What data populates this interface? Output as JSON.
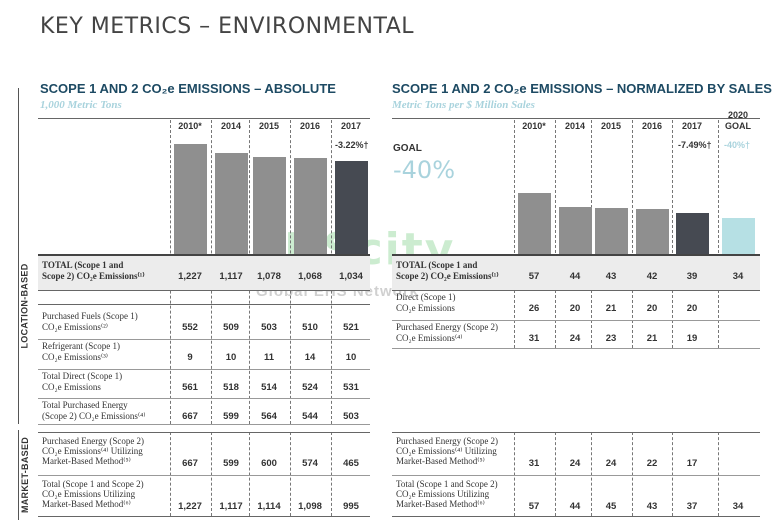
{
  "page_title": "KEY METRICS – ENVIRONMENTAL",
  "sidebar": {
    "location_based": "LOCATION-BASED",
    "market_based": "MARKET-BASED"
  },
  "watermark": {
    "main": "EHScity",
    "sub": "Global EHS Network"
  },
  "chart_data": [
    {
      "type": "bar",
      "title": "SCOPE 1 AND 2 CO₂e EMISSIONS – ABSOLUTE",
      "subtitle": "1,000 Metric Tons",
      "categories": [
        "2010*",
        "2014",
        "2015",
        "2016",
        "2017"
      ],
      "values": [
        1227,
        1117,
        1078,
        1068,
        1034
      ],
      "change_note": "-3.22%†",
      "ylim": [
        0,
        1300
      ],
      "highlight_last": true,
      "table": {
        "location_based_total": {
          "label_1": "TOTAL (Scope 1 and",
          "label_2": "Scope 2) CO₂e Emissions⁽¹⁾",
          "values": [
            "1,227",
            "1,117",
            "1,078",
            "1,068",
            "1,034"
          ]
        },
        "location_based_rows": [
          {
            "label_1": "Purchased Fuels (Scope 1)",
            "label_2": "CO₂e Emissions⁽²⁾",
            "values": [
              "552",
              "509",
              "503",
              "510",
              "521"
            ]
          },
          {
            "label_1": "Refrigerant (Scope 1)",
            "label_2": "CO₂e Emissions⁽³⁾",
            "values": [
              "9",
              "10",
              "11",
              "14",
              "10"
            ]
          },
          {
            "label_1": "Total Direct (Scope 1)",
            "label_2": "CO₂e Emissions",
            "values": [
              "561",
              "518",
              "514",
              "524",
              "531"
            ]
          },
          {
            "label_1": "Total Purchased Energy",
            "label_2": "(Scope 2) CO₂e Emissions⁽⁴⁾",
            "values": [
              "667",
              "599",
              "564",
              "544",
              "503"
            ]
          }
        ],
        "market_based_rows": [
          {
            "label_1": "Purchased Energy (Scope 2)",
            "label_2": "CO₂e Emissions⁽⁴⁾ Utilizing",
            "label_3": "Market-Based Method⁽⁵⁾",
            "values": [
              "667",
              "599",
              "600",
              "574",
              "465"
            ]
          },
          {
            "label_1": "Total (Scope 1 and Scope 2)",
            "label_2": "CO₂e Emissions Utilizing",
            "label_3": "Market-Based Method⁽⁶⁾",
            "values": [
              "1,227",
              "1,117",
              "1,114",
              "1,098",
              "995"
            ]
          }
        ]
      }
    },
    {
      "type": "bar",
      "title": "SCOPE 1 AND 2 CO₂e EMISSIONS – NORMALIZED BY SALES",
      "subtitle": "Metric Tons per $ Million Sales",
      "categories": [
        "2010*",
        "2014",
        "2015",
        "2016",
        "2017",
        "2020 GOAL"
      ],
      "values": [
        57,
        44,
        43,
        42,
        39,
        34
      ],
      "change_note": "-7.49%†",
      "goal_note": "-40%†",
      "goal_label": "GOAL",
      "goal_pct": "-40%",
      "ylim": [
        0,
        110
      ],
      "table": {
        "location_based_total": {
          "label_1": "TOTAL (Scope 1 and",
          "label_2": "Scope 2) CO₂e Emissions⁽¹⁾",
          "values": [
            "57",
            "44",
            "43",
            "42",
            "39",
            "34"
          ]
        },
        "location_based_rows": [
          {
            "label_1": "Direct (Scope 1)",
            "label_2": "CO₂e Emissions",
            "values": [
              "26",
              "20",
              "21",
              "20",
              "20",
              ""
            ]
          },
          {
            "label_1": "Purchased Energy (Scope 2)",
            "label_2": "CO₂e Emissions⁽⁴⁾",
            "values": [
              "31",
              "24",
              "23",
              "21",
              "19",
              ""
            ]
          }
        ],
        "market_based_rows": [
          {
            "label_1": "Purchased Energy (Scope 2)",
            "label_2": "CO₂e Emissions⁽⁴⁾ Utilizing",
            "label_3": "Market-Based Method⁽⁵⁾",
            "values": [
              "31",
              "24",
              "24",
              "22",
              "17",
              ""
            ]
          },
          {
            "label_1": "Total (Scope 1 and Scope 2)",
            "label_2": "CO₂e Emissions Utilizing",
            "label_3": "Market-Based Method⁽⁶⁾",
            "values": [
              "57",
              "44",
              "45",
              "43",
              "37",
              "34"
            ]
          }
        ]
      }
    }
  ]
}
